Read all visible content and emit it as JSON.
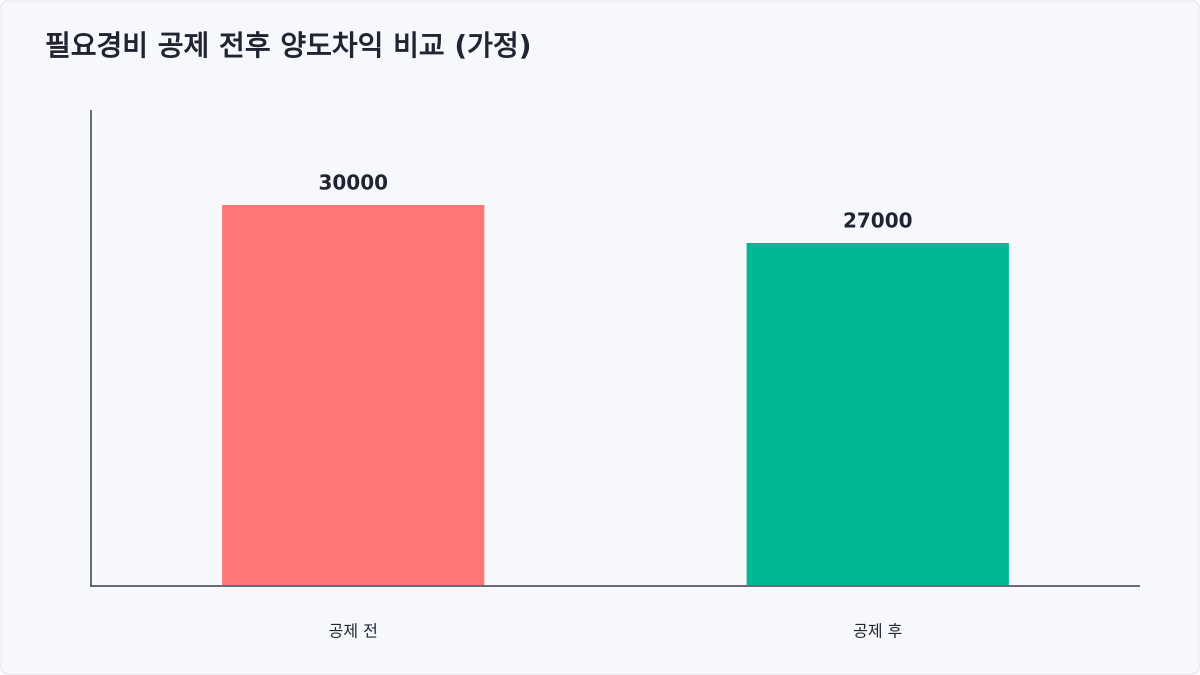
{
  "chart_data": {
    "type": "bar",
    "title": "필요경비 공제 전후 양도차익 비교 (가정)",
    "categories": [
      "공제 전",
      "공제 후"
    ],
    "values": [
      30000,
      27000
    ],
    "colors": [
      "#ff7675",
      "#00b894"
    ],
    "ylim": [
      0,
      37500
    ]
  }
}
